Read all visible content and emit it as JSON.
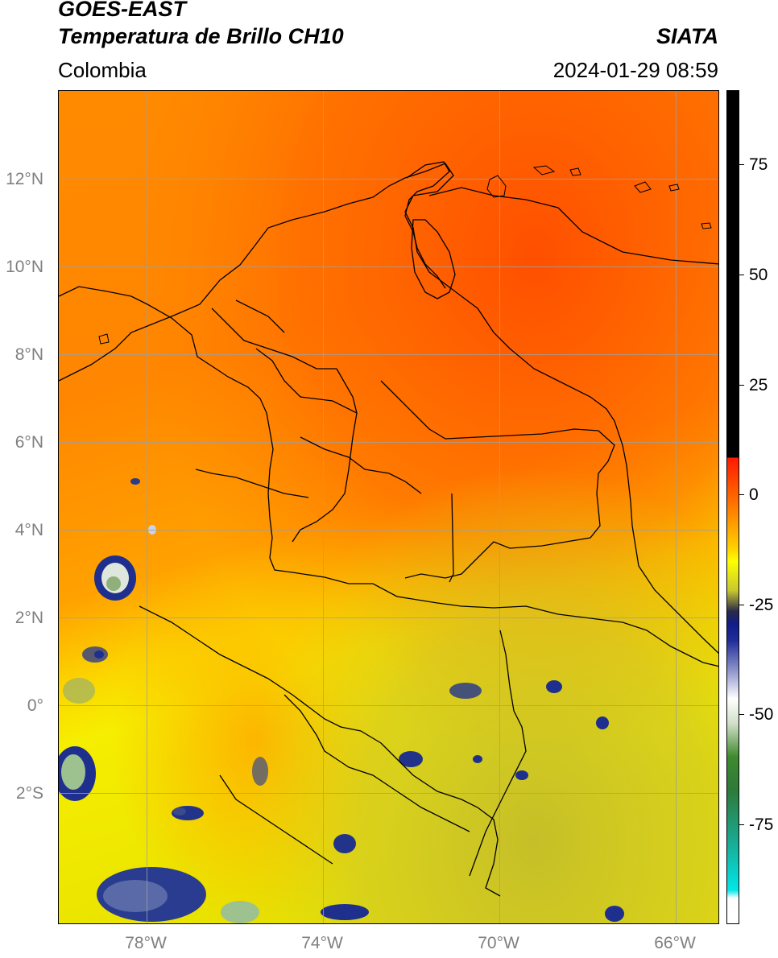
{
  "header": {
    "satellite": "GOES-EAST",
    "product": "Temperatura de Brillo CH10",
    "region": "Colombia",
    "source": "SIATA",
    "datetime": "2024-01-29 08:59"
  },
  "map": {
    "extent": {
      "lon": [
        -80,
        -65
      ],
      "lat": [
        -5,
        14
      ]
    },
    "gridlines": true,
    "gridline_color": "#a0a0a0",
    "latitude_ticks": [
      "12°N",
      "10°N",
      "8°N",
      "6°N",
      "4°N",
      "2°N",
      "0°",
      "2°S"
    ],
    "longitude_ticks": [
      "78°W",
      "74°W",
      "70°W",
      "66°W"
    ],
    "colors": {
      "warm_north": "#ff5a00",
      "mid": "#ff9800",
      "yellow": "#f4ef00",
      "olive": "#c7c02c",
      "deep_convection": "#1a2f8a"
    }
  },
  "colorbar": {
    "ticks": [
      "75",
      "50",
      "25",
      "0",
      "-25",
      "-50",
      "-75"
    ],
    "orientation": "vertical",
    "position": "right"
  }
}
